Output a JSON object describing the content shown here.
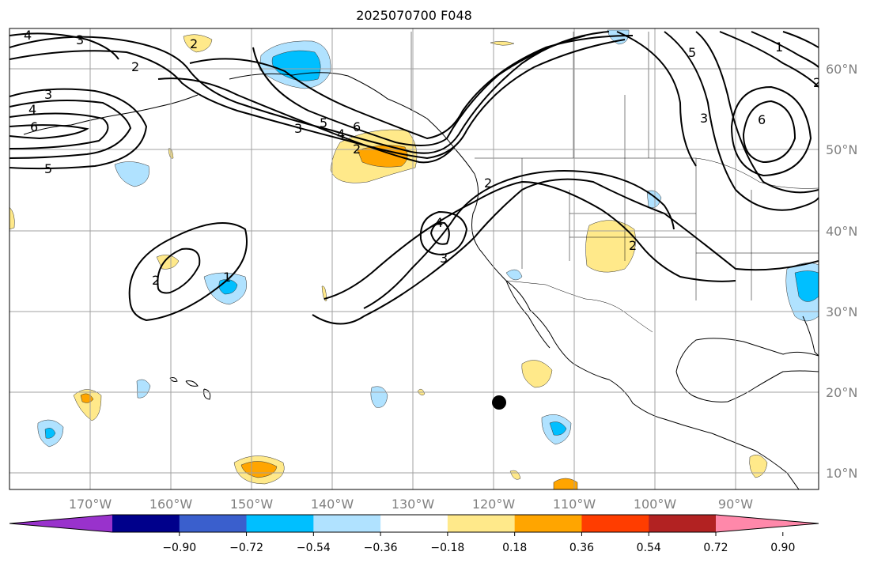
{
  "title": "2025070700 F048",
  "lon_labels": [
    "170°W",
    "160°W",
    "150°W",
    "140°W",
    "130°W",
    "120°W",
    "110°W",
    "100°W",
    "90°W"
  ],
  "lat_labels": [
    "60°N",
    "50°N",
    "40°N",
    "30°N",
    "20°N",
    "10°N"
  ],
  "colorbar": {
    "ticks": [
      "−0.90",
      "−0.72",
      "−0.54",
      "−0.36",
      "−0.18",
      "0.18",
      "0.36",
      "0.54",
      "0.72",
      "0.90"
    ],
    "colors": [
      "#9932cc",
      "#00008b",
      "#3a5fcd",
      "#00bfff",
      "#b0e2ff",
      "#ffffff",
      "#ffe98a",
      "#ffa500",
      "#ff3d00",
      "#b22222",
      "#ff88aa"
    ]
  },
  "contour_labels": [
    "4",
    "3",
    "2",
    "3",
    "4",
    "6",
    "5",
    "2",
    "3",
    "5",
    "4",
    "6",
    "2",
    "4",
    "3",
    "2",
    "2",
    "1",
    "2",
    "5",
    "3",
    "6",
    "2",
    "1"
  ],
  "colors": {
    "land_outline": "#000000",
    "grid": "#a0a0a0",
    "contour": "#000000",
    "dot": "#000000"
  }
}
